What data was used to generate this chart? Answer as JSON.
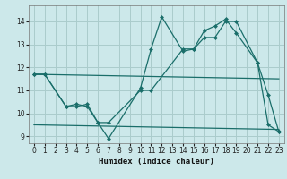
{
  "title": "",
  "xlabel": "Humidex (Indice chaleur)",
  "bg_color": "#cce8ea",
  "grid_color": "#aacccc",
  "line_color": "#1a6e6a",
  "xlim": [
    -0.5,
    23.5
  ],
  "ylim": [
    8.7,
    14.7
  ],
  "yticks": [
    9,
    10,
    11,
    12,
    13,
    14
  ],
  "xticks": [
    0,
    1,
    2,
    3,
    4,
    5,
    6,
    7,
    8,
    9,
    10,
    11,
    12,
    13,
    14,
    15,
    16,
    17,
    18,
    19,
    20,
    21,
    22,
    23
  ],
  "series1_x": [
    0,
    1,
    3,
    4,
    5,
    6,
    7,
    10,
    11,
    12,
    14,
    15,
    16,
    17,
    18,
    19,
    21,
    22,
    23
  ],
  "series1_y": [
    11.7,
    11.7,
    10.3,
    10.4,
    10.3,
    9.6,
    8.9,
    11.1,
    12.8,
    14.2,
    12.7,
    12.8,
    13.6,
    13.8,
    14.1,
    13.5,
    12.2,
    9.5,
    9.2
  ],
  "series2_x": [
    0,
    1,
    3,
    4,
    5,
    6,
    7,
    10,
    11,
    14,
    15,
    16,
    17,
    18,
    19,
    21,
    22,
    23
  ],
  "series2_y": [
    11.7,
    11.7,
    10.3,
    10.3,
    10.4,
    9.6,
    9.6,
    11.0,
    11.0,
    12.8,
    12.8,
    13.3,
    13.3,
    14.0,
    14.0,
    12.2,
    10.8,
    9.2
  ],
  "trend1_x": [
    0,
    23
  ],
  "trend1_y": [
    11.7,
    11.5
  ],
  "trend2_x": [
    0,
    23
  ],
  "trend2_y": [
    9.5,
    9.3
  ]
}
